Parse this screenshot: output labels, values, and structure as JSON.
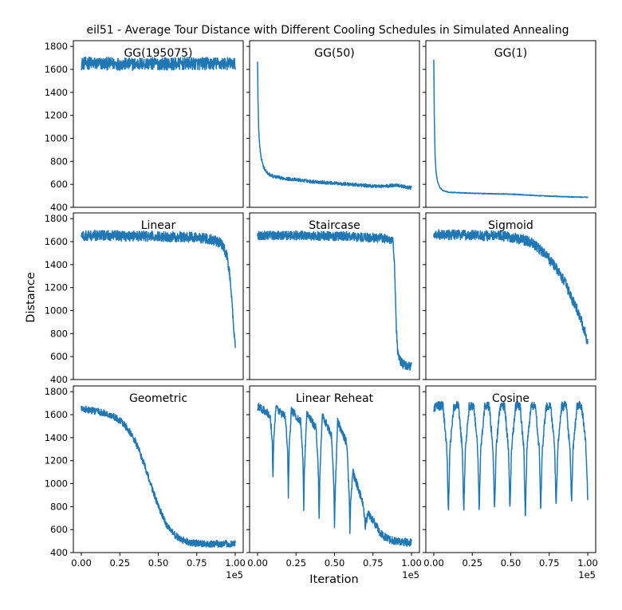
{
  "chart_data": {
    "type": "line",
    "title": "eil51 - Average Tour Distance with Different Cooling Schedules in Simulated Annealing",
    "xlabel": "Iteration",
    "ylabel": "Distance",
    "x_offset_label": "1e5",
    "xlim": [
      0,
      100000
    ],
    "ylim": [
      400,
      1850
    ],
    "x_ticks": [
      0,
      25000,
      50000,
      75000,
      100000
    ],
    "x_tick_labels": [
      "0.00",
      "0.25",
      "0.50",
      "0.75",
      "1.00"
    ],
    "y_ticks": [
      400,
      600,
      800,
      1000,
      1200,
      1400,
      1600,
      1800
    ],
    "y_tick_labels": [
      "400",
      "600",
      "800",
      "1000",
      "1200",
      "1400",
      "1600",
      "1800"
    ],
    "grid": false,
    "color": "#1f77b4",
    "panels": [
      {
        "name": "GG(195075)",
        "x": [
          0,
          5000,
          10000,
          20000,
          30000,
          40000,
          50000,
          60000,
          70000,
          80000,
          90000,
          100000
        ],
        "y": [
          1650,
          1655,
          1650,
          1650,
          1645,
          1650,
          1650,
          1648,
          1650,
          1650,
          1650,
          1650
        ],
        "noise": 55
      },
      {
        "name": "GG(50)",
        "x": [
          0,
          300,
          800,
          1500,
          2500,
          4000,
          6000,
          10000,
          15000,
          25000,
          35000,
          45000,
          55000,
          65000,
          75000,
          85000,
          90000,
          95000,
          100000
        ],
        "y": [
          1670,
          1300,
          1050,
          920,
          820,
          750,
          700,
          670,
          655,
          640,
          625,
          615,
          605,
          595,
          585,
          585,
          595,
          580,
          570
        ],
        "noise": 14
      },
      {
        "name": "GG(1)",
        "x": [
          0,
          300,
          800,
          1500,
          2500,
          4000,
          6000,
          10000,
          20000,
          30000,
          50000,
          70000,
          90000,
          100000
        ],
        "y": [
          1680,
          1200,
          860,
          700,
          620,
          570,
          545,
          530,
          525,
          520,
          515,
          500,
          490,
          488
        ],
        "noise": 3
      },
      {
        "name": "Linear",
        "x": [
          0,
          10000,
          30000,
          50000,
          70000,
          80000,
          85000,
          90000,
          93000,
          95000,
          96500,
          98000,
          99000,
          100000
        ],
        "y": [
          1650,
          1655,
          1650,
          1645,
          1640,
          1630,
          1620,
          1590,
          1540,
          1450,
          1300,
          1050,
          850,
          690
        ],
        "noise": 45
      },
      {
        "name": "Staircase",
        "x": [
          0,
          20000,
          40000,
          60000,
          80000,
          88000,
          89000,
          90000,
          91000,
          92000,
          94000,
          97000,
          100000
        ],
        "y": [
          1655,
          1655,
          1650,
          1645,
          1630,
          1620,
          1400,
          900,
          650,
          580,
          540,
          520,
          512
        ],
        "noise": 40
      },
      {
        "name": "Sigmoid",
        "x": [
          0,
          20000,
          40000,
          50000,
          60000,
          65000,
          70000,
          75000,
          80000,
          85000,
          90000,
          95000,
          98000,
          100000
        ],
        "y": [
          1660,
          1660,
          1650,
          1640,
          1610,
          1580,
          1520,
          1450,
          1360,
          1250,
          1100,
          950,
          820,
          730
        ],
        "noise": 45
      },
      {
        "name": "Geometric",
        "x": [
          0,
          5000,
          10000,
          15000,
          20000,
          25000,
          30000,
          35000,
          40000,
          45000,
          50000,
          55000,
          60000,
          65000,
          70000,
          75000,
          80000,
          90000,
          100000
        ],
        "y": [
          1650,
          1640,
          1630,
          1610,
          1590,
          1550,
          1480,
          1370,
          1200,
          1000,
          800,
          650,
          560,
          510,
          490,
          480,
          477,
          476,
          476
        ],
        "noise": 30
      },
      {
        "name": "Linear Reheat",
        "x": [
          0,
          8000,
          9500,
          10000,
          10500,
          12000,
          18000,
          19500,
          20000,
          20500,
          22000,
          28000,
          29500,
          30000,
          30500,
          32000,
          38000,
          39500,
          40000,
          40500,
          42000,
          48000,
          49500,
          50000,
          50500,
          52000,
          58000,
          59500,
          60000,
          60500,
          62000,
          68000,
          69500,
          70000,
          70500,
          72000,
          78000,
          80000,
          85000,
          90000,
          100000
        ],
        "y": [
          1670,
          1600,
          1400,
          1030,
          1400,
          1660,
          1580,
          1300,
          900,
          1300,
          1640,
          1540,
          1200,
          760,
          1150,
          1620,
          1480,
          1100,
          700,
          1060,
          1600,
          1420,
          1000,
          640,
          950,
          1540,
          1350,
          900,
          600,
          850,
          1100,
          850,
          700,
          620,
          680,
          740,
          620,
          560,
          520,
          500,
          485
        ],
        "noise": 35
      },
      {
        "name": "Cosine",
        "x": [
          0,
          3000,
          6000,
          8500,
          9500,
          10500,
          13000,
          16000,
          18500,
          19500,
          20500,
          23000,
          26000,
          28500,
          29500,
          30500,
          33000,
          36000,
          38500,
          39500,
          40500,
          43000,
          46000,
          48500,
          49500,
          50500,
          53000,
          56000,
          58500,
          59500,
          60500,
          63000,
          66000,
          68500,
          69500,
          70500,
          73000,
          76000,
          78500,
          79500,
          80500,
          83000,
          86000,
          88500,
          89500,
          90500,
          93000,
          96000,
          98500,
          99500,
          100000
        ],
        "y": [
          1660,
          1680,
          1670,
          1300,
          760,
          1300,
          1670,
          1680,
          1300,
          760,
          1300,
          1670,
          1680,
          1300,
          760,
          1300,
          1670,
          1680,
          1300,
          760,
          1300,
          1670,
          1680,
          1300,
          760,
          1300,
          1670,
          1680,
          1300,
          700,
          1300,
          1670,
          1680,
          1300,
          780,
          1300,
          1670,
          1680,
          1300,
          790,
          1300,
          1670,
          1680,
          1300,
          810,
          1300,
          1670,
          1680,
          1400,
          1100,
          870
        ],
        "noise": 40
      }
    ]
  }
}
